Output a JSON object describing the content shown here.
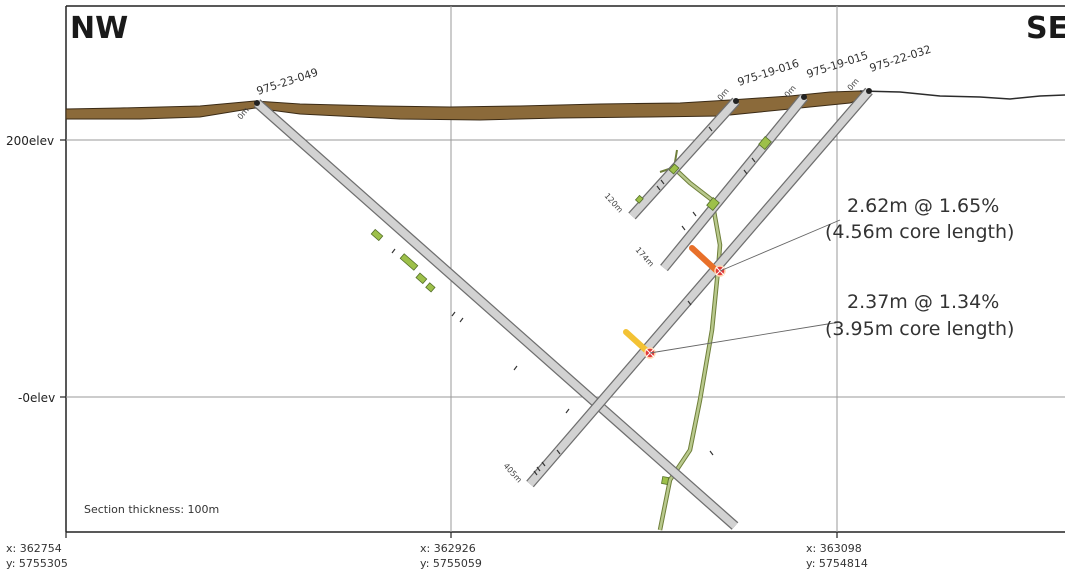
{
  "section": {
    "left_direction": "NW",
    "right_direction": "SE",
    "thickness_label": "Section thickness: 100m"
  },
  "elevation_labels": [
    "200elev",
    "-0elev"
  ],
  "coordinates": [
    {
      "x": "x: 362754",
      "y": "y: 5755305"
    },
    {
      "x": "x: 362926",
      "y": "y: 5755059"
    },
    {
      "x": "x: 363098",
      "y": "y: 5754814"
    }
  ],
  "drill_holes": [
    {
      "id": "975-23-049",
      "collar_label": "0m",
      "end_label": ""
    },
    {
      "id": "975-19-016",
      "collar_label": "0m",
      "end_label": "120m"
    },
    {
      "id": "975-19-015",
      "collar_label": "0m",
      "end_label": "174m"
    },
    {
      "id": "975-22-032",
      "collar_label": "0m",
      "end_label": "405m"
    }
  ],
  "intercepts": [
    {
      "line1": "2.62m @ 1.65%",
      "line2": "(4.56m core length)"
    },
    {
      "line1": "2.37m @ 1.34%",
      "line2": "(3.95m core length)"
    }
  ],
  "colors": {
    "overburden": "#8b6a3a",
    "hole_fill": "#d2d2d2",
    "hole_outline": "#6e6e6e",
    "fault": "#a8b878",
    "mineralization": "#9dc04a",
    "high_grade": "#e8702a",
    "mid_grade": "#f3c234",
    "intercept_marker": "#e03a3a"
  }
}
